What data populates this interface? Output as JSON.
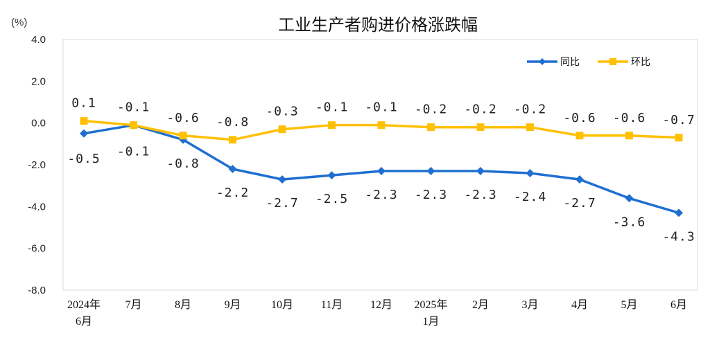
{
  "chart_data": {
    "type": "line",
    "title": "工业生产者购进价格涨跌幅",
    "unit_label": "(%)",
    "categories": [
      "2024年\n6月",
      "7月",
      "8月",
      "9月",
      "10月",
      "11月",
      "12月",
      "2025年\n1月",
      "2月",
      "3月",
      "4月",
      "5月",
      "6月"
    ],
    "yticks": [
      "4.0",
      "2.0",
      "0.0",
      "-2.0",
      "-4.0",
      "-6.0",
      "-8.0"
    ],
    "ylim": [
      -8,
      4
    ],
    "legend_position": "top-right",
    "series": [
      {
        "name": "同比",
        "color": "#1f6fd1",
        "marker": "diamond",
        "values": [
          -0.5,
          -0.1,
          -0.8,
          -2.2,
          -2.7,
          -2.5,
          -2.3,
          -2.3,
          -2.3,
          -2.4,
          -2.7,
          -3.6,
          -4.3
        ],
        "labels": [
          "-0.5",
          "-0.1",
          "-0.8",
          "-2.2",
          "-2.7",
          "-2.5",
          "-2.3",
          "-2.3",
          "-2.3",
          "-2.4",
          "-2.7",
          "-3.6",
          "-4.3"
        ]
      },
      {
        "name": "环比",
        "color": "#ffc000",
        "marker": "square",
        "values": [
          0.1,
          -0.1,
          -0.6,
          -0.8,
          -0.3,
          -0.1,
          -0.1,
          -0.2,
          -0.2,
          -0.2,
          -0.6,
          -0.6,
          -0.7
        ],
        "labels": [
          "0.1",
          "-0.1",
          "-0.6",
          "-0.8",
          "-0.3",
          "-0.1",
          "-0.1",
          "-0.2",
          "-0.2",
          "-0.2",
          "-0.6",
          "-0.6",
          "-0.7"
        ]
      }
    ]
  }
}
